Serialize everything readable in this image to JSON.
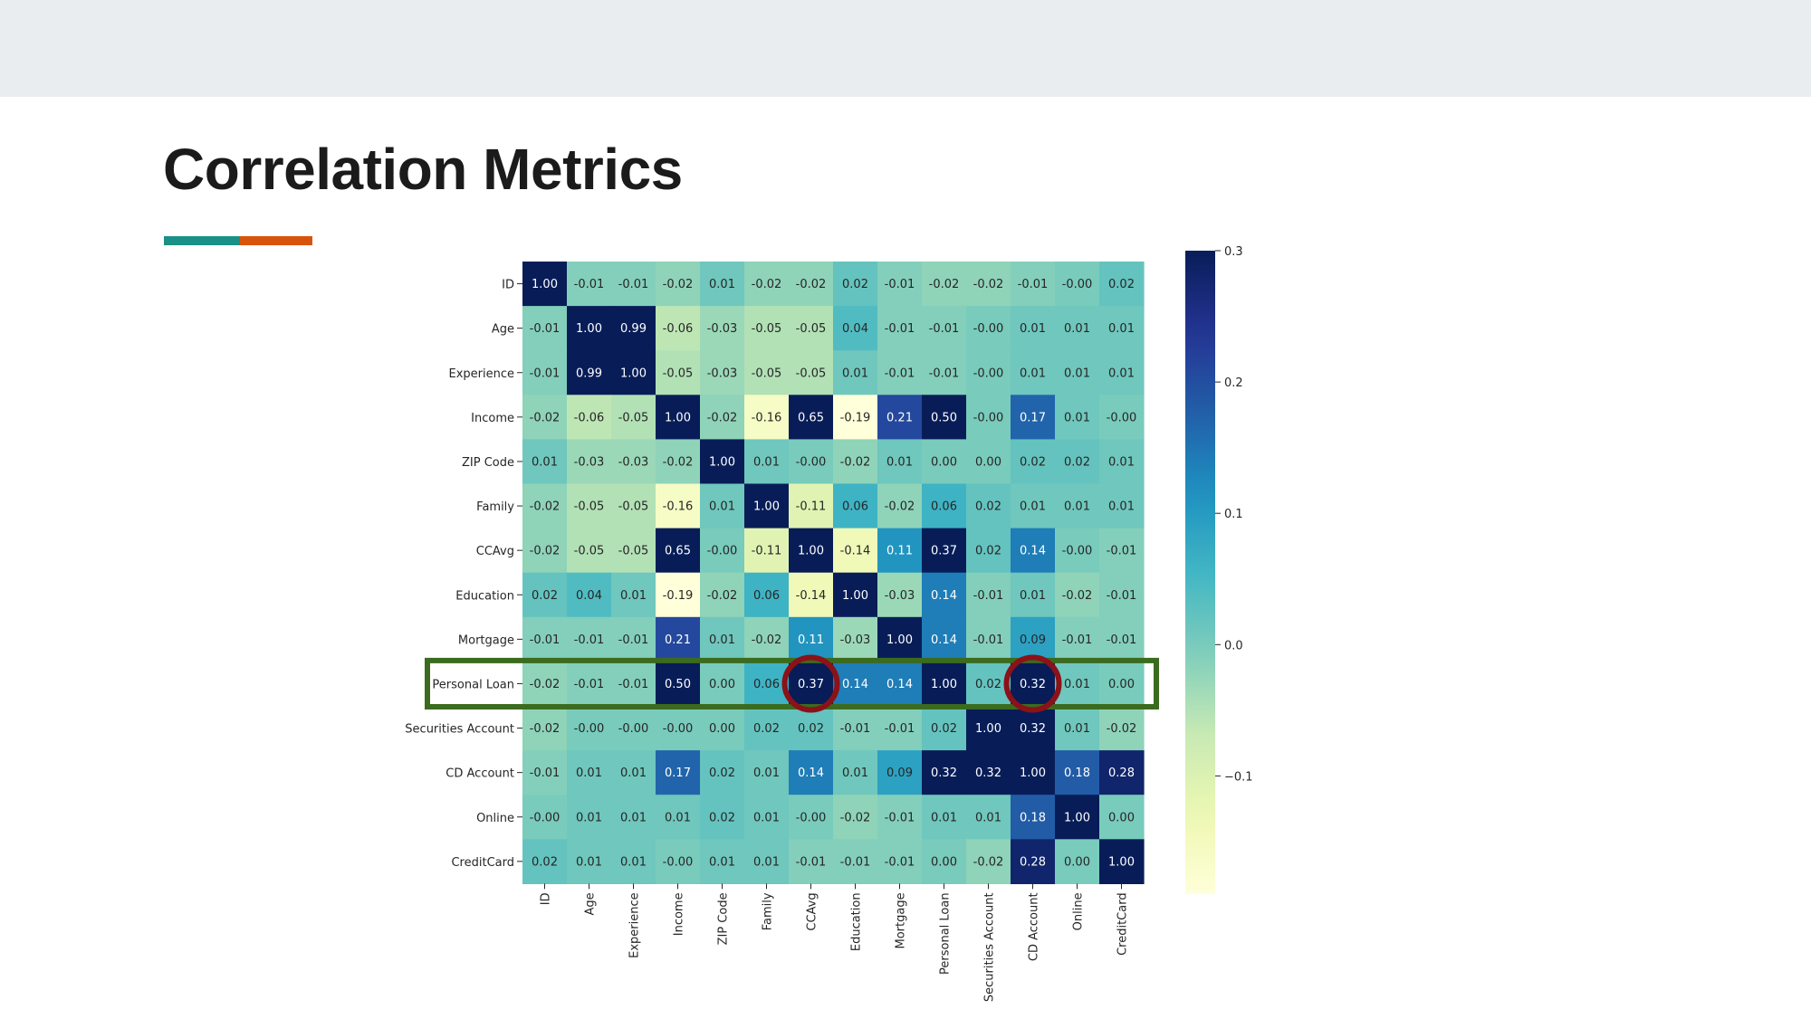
{
  "slide": {
    "title": "Correlation Metrics"
  },
  "colors": {
    "topbar": "#e9edf0",
    "accent_teal": "#1a9087",
    "accent_orange": "#d8540d",
    "highlight_rect": "#3b6b1e",
    "highlight_circle": "#8b1218",
    "colormap": "YlGnBu"
  },
  "chart_data": {
    "type": "heatmap",
    "title": "",
    "variables": [
      "ID",
      "Age",
      "Experience",
      "Income",
      "ZIP Code",
      "Family",
      "CCAvg",
      "Education",
      "Mortgage",
      "Personal Loan",
      "Securities Account",
      "CD Account",
      "Online",
      "CreditCard"
    ],
    "values": [
      [
        "1.00",
        "-0.01",
        "-0.01",
        "-0.02",
        "0.01",
        "-0.02",
        "-0.02",
        "0.02",
        "-0.01",
        "-0.02",
        "-0.02",
        "-0.01",
        "-0.00",
        "0.02"
      ],
      [
        "-0.01",
        "1.00",
        "0.99",
        "-0.06",
        "-0.03",
        "-0.05",
        "-0.05",
        "0.04",
        "-0.01",
        "-0.01",
        "-0.00",
        "0.01",
        "0.01",
        "0.01"
      ],
      [
        "-0.01",
        "0.99",
        "1.00",
        "-0.05",
        "-0.03",
        "-0.05",
        "-0.05",
        "0.01",
        "-0.01",
        "-0.01",
        "-0.00",
        "0.01",
        "0.01",
        "0.01"
      ],
      [
        "-0.02",
        "-0.06",
        "-0.05",
        "1.00",
        "-0.02",
        "-0.16",
        "0.65",
        "-0.19",
        "0.21",
        "0.50",
        "-0.00",
        "0.17",
        "0.01",
        "-0.00"
      ],
      [
        "0.01",
        "-0.03",
        "-0.03",
        "-0.02",
        "1.00",
        "0.01",
        "-0.00",
        "-0.02",
        "0.01",
        "0.00",
        "0.00",
        "0.02",
        "0.02",
        "0.01"
      ],
      [
        "-0.02",
        "-0.05",
        "-0.05",
        "-0.16",
        "0.01",
        "1.00",
        "-0.11",
        "0.06",
        "-0.02",
        "0.06",
        "0.02",
        "0.01",
        "0.01",
        "0.01"
      ],
      [
        "-0.02",
        "-0.05",
        "-0.05",
        "0.65",
        "-0.00",
        "-0.11",
        "1.00",
        "-0.14",
        "0.11",
        "0.37",
        "0.02",
        "0.14",
        "-0.00",
        "-0.01"
      ],
      [
        "0.02",
        "0.04",
        "0.01",
        "-0.19",
        "-0.02",
        "0.06",
        "-0.14",
        "1.00",
        "-0.03",
        "0.14",
        "-0.01",
        "0.01",
        "-0.02",
        "-0.01"
      ],
      [
        "-0.01",
        "-0.01",
        "-0.01",
        "0.21",
        "0.01",
        "-0.02",
        "0.11",
        "-0.03",
        "1.00",
        "0.14",
        "-0.01",
        "0.09",
        "-0.01",
        "-0.01"
      ],
      [
        "-0.02",
        "-0.01",
        "-0.01",
        "0.50",
        "0.00",
        "0.06",
        "0.37",
        "0.14",
        "0.14",
        "1.00",
        "0.02",
        "0.32",
        "0.01",
        "0.00"
      ],
      [
        "-0.02",
        "-0.00",
        "-0.00",
        "-0.00",
        "0.00",
        "0.02",
        "0.02",
        "-0.01",
        "-0.01",
        "0.02",
        "1.00",
        "0.32",
        "0.01",
        "-0.02"
      ],
      [
        "-0.01",
        "0.01",
        "0.01",
        "0.17",
        "0.02",
        "0.01",
        "0.14",
        "0.01",
        "0.09",
        "0.32",
        "0.32",
        "1.00",
        "0.18",
        "0.28"
      ],
      [
        "-0.00",
        "0.01",
        "0.01",
        "0.01",
        "0.02",
        "0.01",
        "-0.00",
        "-0.02",
        "-0.01",
        "0.01",
        "0.01",
        "0.18",
        "1.00",
        "0.00"
      ],
      [
        "0.02",
        "0.01",
        "0.01",
        "-0.00",
        "0.01",
        "0.01",
        "-0.01",
        "-0.01",
        "-0.01",
        "0.00",
        "-0.02",
        "0.28",
        "0.00",
        "1.00"
      ]
    ],
    "colorbar": {
      "vmin": -0.19,
      "vmax": 0.3,
      "ticks": [
        0.3,
        0.2,
        0.1,
        0.0,
        -0.1
      ],
      "tick_labels": [
        "0.3",
        "0.2",
        "0.1",
        "0.0",
        "−0.1"
      ]
    },
    "highlight": {
      "row": "Personal Loan",
      "circled_columns": [
        "CCAvg",
        "CD Account"
      ]
    }
  }
}
